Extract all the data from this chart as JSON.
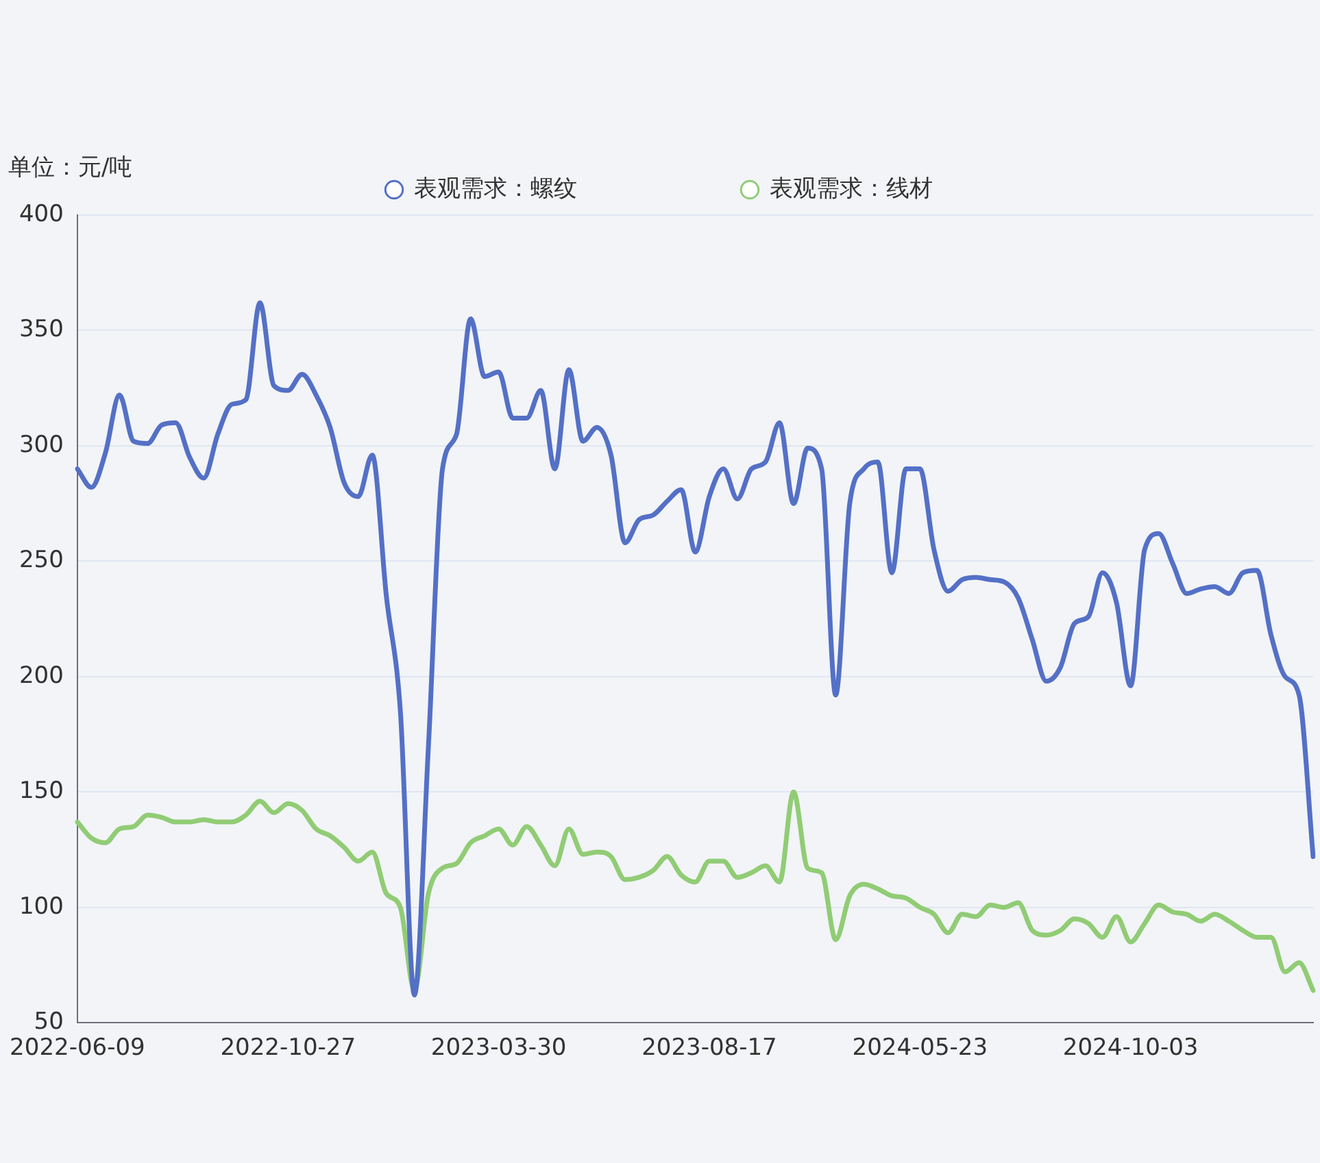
{
  "chart_data": {
    "type": "line",
    "ylabel": "单位：元/吨",
    "categories": [
      "2022-06-09",
      null,
      null,
      null,
      null,
      null,
      null,
      null,
      null,
      null,
      null,
      null,
      null,
      null,
      null,
      "2022-10-27",
      null,
      null,
      null,
      null,
      null,
      null,
      null,
      null,
      null,
      null,
      null,
      null,
      null,
      null,
      "2023-03-30",
      null,
      null,
      null,
      null,
      null,
      null,
      null,
      null,
      null,
      null,
      null,
      null,
      null,
      null,
      "2023-08-17",
      null,
      null,
      null,
      null,
      null,
      null,
      null,
      null,
      null,
      null,
      null,
      null,
      null,
      null,
      "2024-05-23",
      null,
      null,
      null,
      null,
      null,
      null,
      null,
      null,
      null,
      null,
      null,
      null,
      null,
      null,
      "2024-10-03",
      null,
      null,
      null,
      null,
      null,
      null,
      null,
      null,
      null,
      null,
      null,
      null,
      null
    ],
    "series": [
      {
        "name": "表观需求：螺纹",
        "color": "#5470c6",
        "values": [
          290,
          282,
          297,
          322,
          302,
          301,
          309,
          310,
          295,
          286,
          305,
          318,
          320,
          362,
          326,
          324,
          331,
          322,
          308,
          284,
          278,
          296,
          235,
          185,
          62,
          170,
          290,
          305,
          355,
          330,
          332,
          312,
          312,
          324,
          290,
          333,
          302,
          308,
          296,
          258,
          268,
          270,
          276,
          281,
          254,
          278,
          290,
          277,
          290,
          293,
          310,
          275,
          299,
          290,
          192,
          275,
          290,
          293,
          245,
          290,
          290,
          255,
          237,
          242,
          243,
          242,
          241,
          234,
          216,
          198,
          204,
          223,
          226,
          245,
          232,
          196,
          255,
          262,
          249,
          236,
          238,
          239,
          236,
          245,
          246,
          218,
          200,
          192,
          122
        ]
      },
      {
        "name": "表观需求：线材",
        "color": "#91cc75",
        "values": [
          137,
          130,
          128,
          134,
          135,
          140,
          139,
          137,
          137,
          138,
          137,
          137,
          140,
          146,
          141,
          145,
          142,
          134,
          131,
          126,
          120,
          124,
          106,
          100,
          64,
          106,
          117,
          119,
          128,
          131,
          134,
          127,
          135,
          127,
          118,
          134,
          123,
          124,
          122,
          112,
          113,
          116,
          122,
          114,
          111,
          120,
          120,
          113,
          115,
          118,
          111,
          150,
          117,
          115,
          86,
          105,
          110,
          108,
          105,
          104,
          100,
          97,
          89,
          97,
          96,
          101,
          100,
          102,
          90,
          88,
          90,
          95,
          93,
          87,
          96,
          85,
          93,
          101,
          98,
          97,
          94,
          97,
          94,
          90,
          87,
          87,
          72,
          76,
          64
        ]
      }
    ],
    "ylim": [
      50,
      400
    ],
    "yticks": [
      50,
      100,
      150,
      200,
      250,
      300,
      350,
      400
    ],
    "grid": "y",
    "legend": "top",
    "line_style": "solid"
  }
}
